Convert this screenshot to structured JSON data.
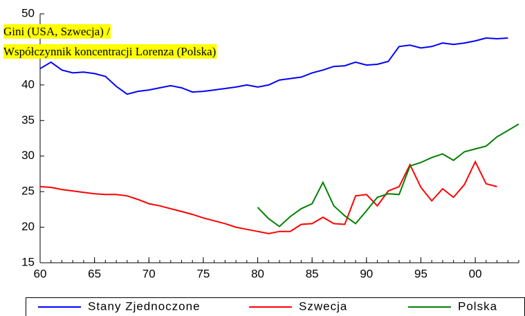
{
  "chart_data": {
    "type": "line",
    "title": [
      "Gini (USA, Szwecja) /",
      "Współczynnik koncentracji Lorenza (Polska)"
    ],
    "x": [
      1960,
      1961,
      1962,
      1963,
      1964,
      1965,
      1966,
      1967,
      1968,
      1969,
      1970,
      1971,
      1972,
      1973,
      1974,
      1975,
      1976,
      1977,
      1978,
      1979,
      1980,
      1981,
      1982,
      1983,
      1984,
      1985,
      1986,
      1987,
      1988,
      1989,
      1990,
      1991,
      1992,
      1993,
      1994,
      1995,
      1996,
      1997,
      1998,
      1999,
      2000,
      2001,
      2002,
      2003,
      2004
    ],
    "series": [
      {
        "name": "Stany Zjednoczone",
        "color": "#0000ff",
        "values": [
          42.3,
          43.2,
          42.1,
          41.7,
          41.8,
          41.6,
          41.2,
          39.8,
          38.7,
          39.1,
          39.3,
          39.6,
          39.9,
          39.6,
          39.0,
          39.1,
          39.3,
          39.5,
          39.7,
          40.0,
          39.7,
          40.0,
          40.7,
          40.9,
          41.1,
          41.7,
          42.1,
          42.6,
          42.7,
          43.2,
          42.8,
          42.9,
          43.3,
          45.4,
          45.6,
          45.2,
          45.4,
          45.9,
          45.7,
          45.9,
          46.2,
          46.6,
          46.5,
          46.6,
          null
        ]
      },
      {
        "name": "Szwecja",
        "color": "#ff0000",
        "values": [
          25.7,
          25.6,
          25.3,
          25.1,
          24.9,
          24.7,
          24.6,
          24.6,
          24.4,
          23.9,
          23.3,
          23.0,
          22.6,
          22.2,
          21.8,
          21.3,
          20.9,
          20.5,
          20.0,
          19.7,
          19.4,
          19.1,
          19.4,
          19.4,
          20.4,
          20.5,
          21.4,
          20.5,
          20.4,
          24.4,
          24.6,
          23.0,
          25.1,
          25.7,
          28.8,
          25.6,
          23.7,
          25.4,
          24.2,
          26.0,
          29.2,
          26.1,
          25.7,
          null,
          null
        ]
      },
      {
        "name": "Polska",
        "color": "#008000",
        "values": [
          null,
          null,
          null,
          null,
          null,
          null,
          null,
          null,
          null,
          null,
          null,
          null,
          null,
          null,
          null,
          null,
          null,
          null,
          null,
          null,
          22.8,
          21.2,
          20.1,
          21.5,
          22.6,
          23.3,
          26.3,
          23.0,
          21.6,
          20.5,
          22.3,
          24.2,
          24.7,
          24.6,
          28.6,
          29.1,
          29.8,
          30.3,
          29.4,
          30.6,
          31.0,
          31.4,
          32.7,
          33.6,
          34.5
        ]
      }
    ],
    "xlim": [
      1960,
      2004
    ],
    "xticks": [
      {
        "value": 1960,
        "label": "60"
      },
      {
        "value": 1965,
        "label": "65"
      },
      {
        "value": 1970,
        "label": "70"
      },
      {
        "value": 1975,
        "label": "75"
      },
      {
        "value": 1980,
        "label": "80"
      },
      {
        "value": 1985,
        "label": "85"
      },
      {
        "value": 1990,
        "label": "90"
      },
      {
        "value": 1995,
        "label": "95"
      },
      {
        "value": 2000,
        "label": "00"
      }
    ],
    "ylim": [
      15,
      50
    ],
    "yticks": [
      15,
      20,
      25,
      30,
      35,
      40,
      45,
      50
    ],
    "highlight_color": "#ffff00"
  }
}
